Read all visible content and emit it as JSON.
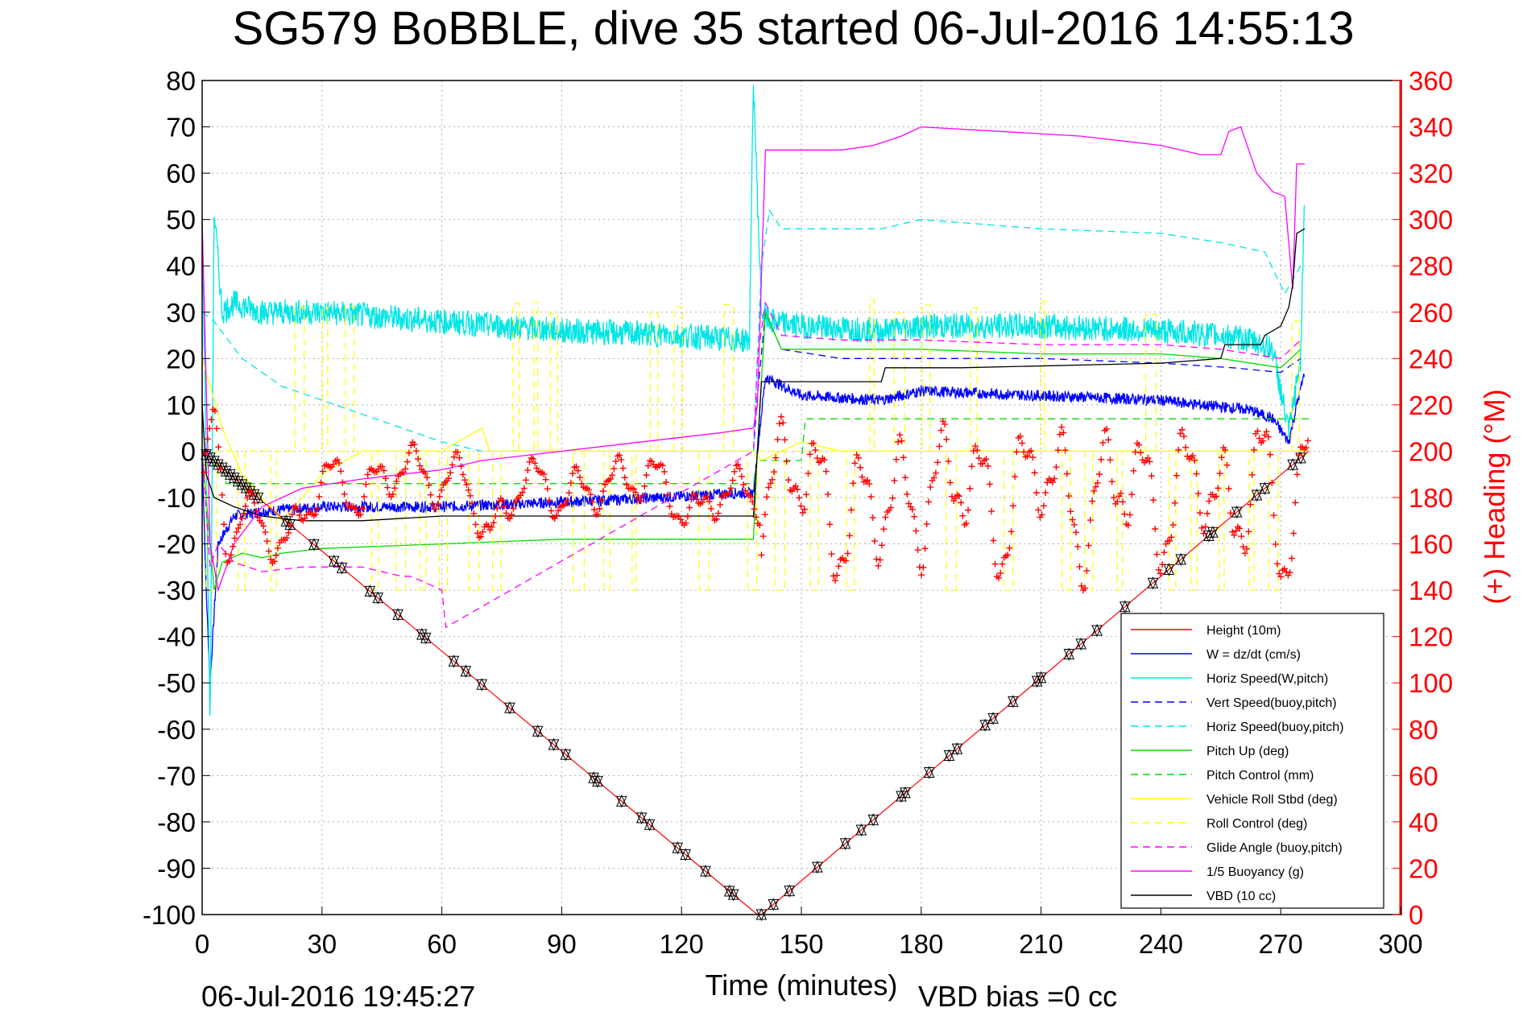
{
  "chart_data": {
    "type": "line",
    "title": "SG579 BoBBLE, dive 35 started 06-Jul-2016 14:55:13",
    "xlabel": "Time (minutes)",
    "ylabel_right": "(+) Heading (°M)",
    "xlim": [
      0,
      300
    ],
    "ylim": [
      -100,
      80
    ],
    "ylim_right": [
      0,
      360
    ],
    "xticks": [
      0,
      30,
      60,
      90,
      120,
      150,
      180,
      210,
      240,
      270,
      300
    ],
    "yticks": [
      80,
      70,
      60,
      50,
      40,
      30,
      20,
      10,
      0,
      -10,
      -20,
      -30,
      -40,
      -50,
      -60,
      -70,
      -80,
      -90,
      -100
    ],
    "yticks_right": [
      360,
      340,
      320,
      300,
      280,
      260,
      240,
      220,
      200,
      180,
      160,
      140,
      120,
      100,
      80,
      60,
      40,
      20,
      0
    ],
    "grid": true,
    "legend_position": "bottom-right",
    "footer_timestamp": "06-Jul-2016 19:45:27",
    "footer_bias": "VBD bias =0 cc",
    "colors": {
      "red": "#ff0000",
      "blue": "#0000ff",
      "cyan": "#00e5e5",
      "green": "#00dd00",
      "yellow": "#ffff00",
      "magenta": "#ff00ff",
      "black": "#000000",
      "grid": "#b0b0b0"
    },
    "series": [
      {
        "name": "Height (10m)",
        "color": "red",
        "dash": "solid",
        "x": [
          0,
          139,
          140,
          277
        ],
        "y": [
          0,
          -100,
          -100,
          0
        ]
      },
      {
        "name": "W = dz/dt (cm/s)",
        "color": "blue",
        "dash": "solid",
        "noise": 1.2,
        "x": [
          0,
          1,
          2,
          4,
          8,
          15,
          30,
          60,
          90,
          115,
          135,
          138,
          139,
          141,
          150,
          170,
          180,
          210,
          240,
          250,
          262,
          268,
          272,
          274,
          276
        ],
        "y": [
          0,
          -30,
          -50,
          -20,
          -14,
          -13,
          -12,
          -12,
          -11,
          -10,
          -9,
          -9,
          0,
          16,
          12,
          11,
          13,
          12,
          11,
          10,
          9,
          7,
          2,
          10,
          17
        ]
      },
      {
        "name": "Horiz Speed(W,pitch)",
        "color": "cyan",
        "dash": "solid",
        "noise": 2.8,
        "x": [
          0,
          1,
          2,
          3,
          5,
          8,
          15,
          30,
          60,
          90,
          120,
          135,
          137,
          138,
          140,
          142,
          150,
          170,
          180,
          210,
          240,
          255,
          262,
          268,
          272,
          275,
          276
        ],
        "y": [
          48,
          0,
          -60,
          52,
          30,
          32,
          30,
          30,
          28,
          26,
          25,
          24,
          24,
          80,
          30,
          28,
          27,
          26,
          27,
          27,
          26,
          25,
          24,
          22,
          4,
          20,
          60
        ]
      },
      {
        "name": "Vert Speed(buoy,pitch)",
        "color": "blue",
        "dash": "dashed",
        "x": [
          138,
          139,
          141,
          145,
          160,
          180,
          210,
          240,
          258,
          270,
          275
        ],
        "y": [
          0,
          12,
          30,
          22,
          20,
          20,
          20,
          19,
          18,
          17,
          20
        ]
      },
      {
        "name": "Horiz Speed(buoy,pitch)",
        "color": "cyan",
        "dash": "dashed",
        "x": [
          0,
          3,
          10,
          20,
          40,
          60,
          70,
          138,
          140,
          142,
          145,
          150,
          170,
          180,
          210,
          240,
          255,
          266,
          271,
          275
        ],
        "y": [
          30,
          28,
          20,
          14,
          8,
          2,
          0,
          0,
          40,
          52,
          48,
          48,
          48,
          50,
          48,
          47,
          45,
          43,
          34,
          40
        ]
      },
      {
        "name": "Pitch Up (deg)",
        "color": "green",
        "dash": "solid",
        "x": [
          0,
          2,
          3,
          5,
          10,
          15,
          20,
          30,
          60,
          90,
          120,
          138,
          139,
          141,
          145,
          160,
          180,
          210,
          240,
          255,
          270,
          275
        ],
        "y": [
          0,
          -20,
          -30,
          -24,
          -22,
          -23,
          -22,
          -21,
          -20,
          -19,
          -19,
          -19,
          0,
          30,
          22,
          22,
          22,
          21,
          21,
          20,
          18,
          22
        ]
      },
      {
        "name": "Pitch Control (mm)",
        "color": "green",
        "dash": "dashed",
        "x": [
          0,
          5,
          6,
          138,
          139,
          150,
          151,
          277
        ],
        "y": [
          -3,
          -3,
          -7,
          -7,
          -2,
          -2,
          7,
          7
        ]
      },
      {
        "name": "Vehicle Roll Stbd (deg)",
        "color": "yellow",
        "dash": "solid",
        "x": [
          0,
          5,
          10,
          15,
          20,
          25,
          30,
          40,
          60,
          70,
          72,
          80,
          100,
          120,
          138,
          140,
          150,
          160,
          170,
          180,
          200,
          220,
          240,
          260,
          270,
          277
        ],
        "y": [
          20,
          5,
          -5,
          -10,
          -15,
          -10,
          -5,
          0,
          0,
          5,
          0,
          0,
          0,
          0,
          0,
          -2,
          2,
          0,
          0,
          0,
          0,
          0,
          0,
          0,
          0,
          0
        ]
      },
      {
        "name": "Roll Control (deg)",
        "color": "yellow",
        "dash": "dashed",
        "pulses": true,
        "x": [
          0,
          277
        ],
        "y": [
          0,
          0
        ]
      },
      {
        "name": "Glide Angle (buoy,pitch)",
        "color": "magenta",
        "dash": "dashed",
        "x": [
          0,
          2,
          4,
          8,
          15,
          25,
          40,
          50,
          52,
          55,
          60,
          61,
          138,
          139,
          141,
          145,
          160,
          180,
          210,
          240,
          255,
          270,
          275
        ],
        "y": [
          0,
          -25,
          -20,
          -24,
          -26,
          -25,
          -25,
          -27,
          -27,
          -28,
          -30,
          -38,
          0,
          20,
          32,
          25,
          24,
          24,
          23,
          23,
          22,
          20,
          24
        ]
      },
      {
        "name": "1/5 Buoyancy (g)",
        "color": "magenta",
        "dash": "solid",
        "x": [
          0,
          2,
          4,
          8,
          15,
          25,
          40,
          50,
          60,
          70,
          100,
          130,
          138,
          139,
          141,
          150,
          160,
          168,
          175,
          180,
          200,
          220,
          240,
          250,
          255,
          257,
          260,
          264,
          268,
          271,
          273,
          274,
          276
        ],
        "y": [
          50,
          -20,
          -30,
          -20,
          -12,
          -8,
          -6,
          -5,
          -4,
          -2,
          1,
          4,
          5,
          10,
          65,
          65,
          65,
          66,
          68,
          70,
          69,
          68,
          66,
          64,
          64,
          69,
          70,
          60,
          56,
          55,
          35,
          62,
          62
        ]
      },
      {
        "name": "VBD (10 cc)",
        "color": "black",
        "dash": "solid",
        "x": [
          0,
          1,
          3,
          8,
          15,
          25,
          40,
          60,
          90,
          120,
          138,
          139,
          140,
          142,
          160,
          170,
          171,
          190,
          240,
          255,
          256,
          265,
          266,
          270,
          272,
          273,
          274,
          276
        ],
        "y": [
          10,
          -5,
          -10,
          -12,
          -14,
          -15,
          -15,
          -14,
          -14,
          -14,
          -14,
          0,
          15,
          15,
          15,
          15,
          18,
          18,
          19,
          20,
          23,
          23,
          25,
          27,
          31,
          36,
          47,
          48
        ]
      }
    ],
    "heading_markers": {
      "name": "(+) Heading (°M)",
      "color": "red",
      "axis": "right"
    },
    "height_markers": {
      "name": "Height markers",
      "color": "black"
    }
  }
}
